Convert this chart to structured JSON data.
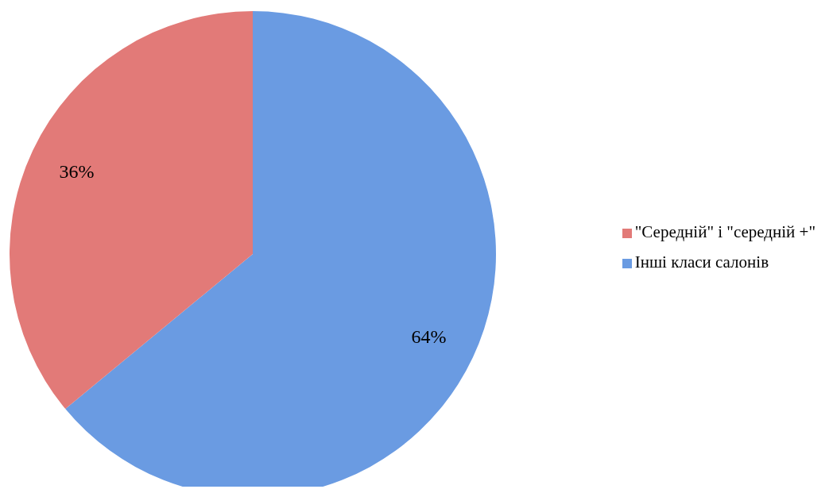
{
  "chart_data": {
    "type": "pie",
    "categories": [
      "Інші класи салонів",
      "\"Середній\" і \"середній +\""
    ],
    "values": [
      64,
      36
    ],
    "colors": [
      "#6a9be2",
      "#e27a78"
    ],
    "value_labels": [
      "64%",
      "36%"
    ],
    "legend": "right"
  }
}
